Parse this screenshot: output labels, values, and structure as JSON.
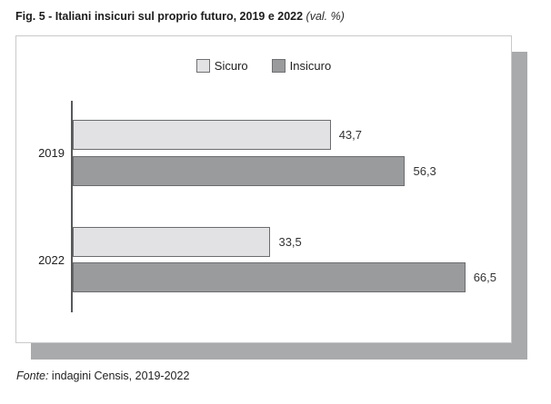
{
  "title": {
    "main": "Fig. 5 - Italiani insicuri sul proprio futuro, 2019 e 2022",
    "suffix": " (val. %)"
  },
  "chart_data": {
    "type": "bar",
    "orientation": "horizontal",
    "title": "Fig. 5 - Italiani insicuri sul proprio futuro, 2019 e 2022 (val. %)",
    "categories": [
      "2019",
      "2022"
    ],
    "series": [
      {
        "name": "Sicuro",
        "values": [
          43.7,
          33.5
        ],
        "labels": [
          "43,7",
          "33,5"
        ],
        "color": "#e2e2e4"
      },
      {
        "name": "Insicuro",
        "values": [
          56.3,
          66.5
        ],
        "labels": [
          "56,3",
          "66,5"
        ],
        "color": "#9a9b9d"
      }
    ],
    "xlim": [
      0,
      74.4
    ],
    "grid": false,
    "legend_position": "top-center",
    "value_labels": true,
    "source": "Fonte: indagini Censis, 2019-2022"
  },
  "footer": {
    "source_prefix": "Fonte:",
    "source_text": " indagini Censis, 2019-2022"
  }
}
